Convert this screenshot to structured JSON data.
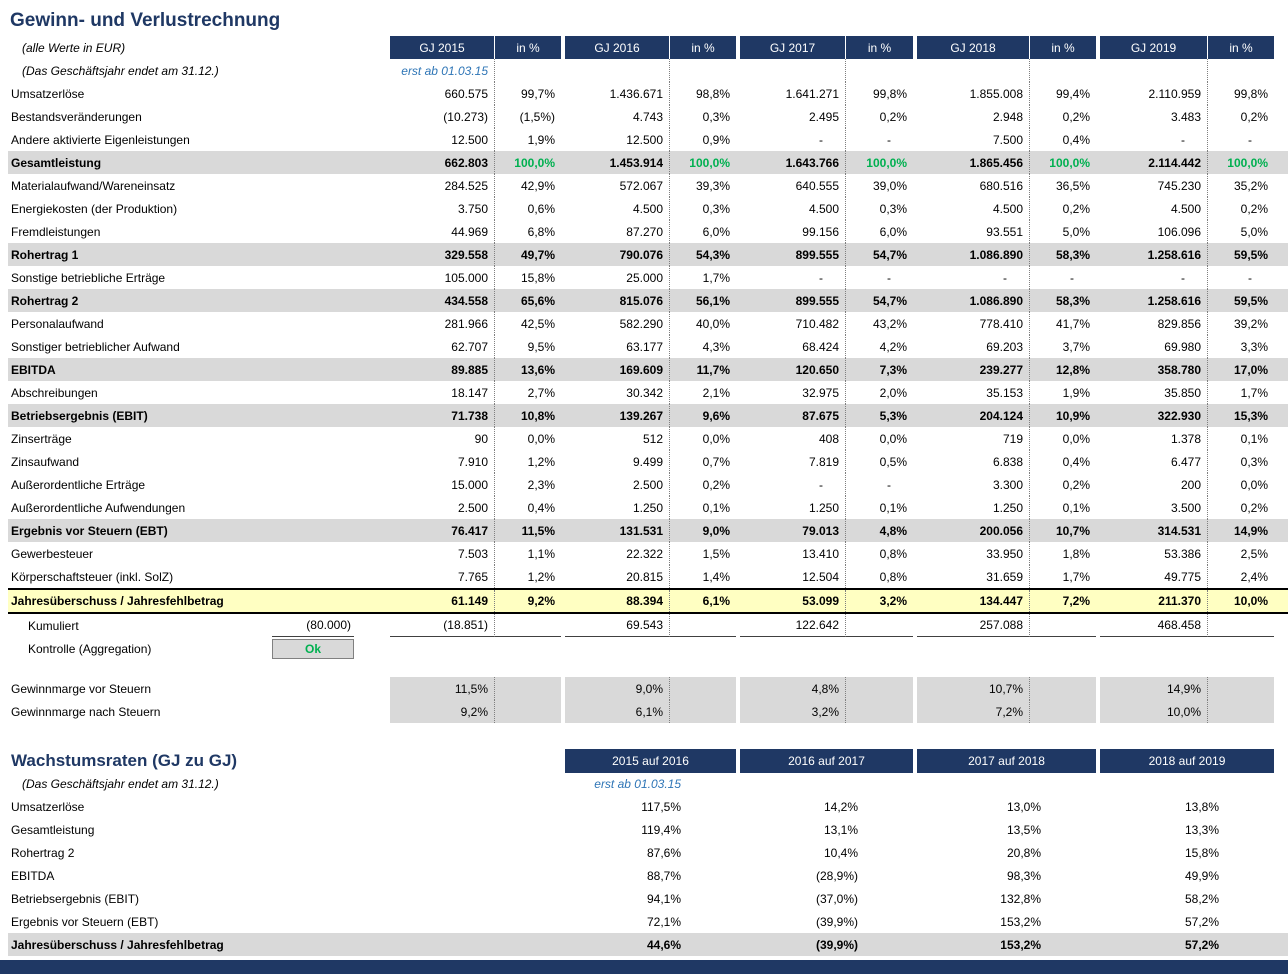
{
  "colors": {
    "header_bg": "#1F3864",
    "title_text": "#1F3864",
    "subtotal_row_bg": "#D9D9D9",
    "highlight_row_bg": "#FFFFC2",
    "green_pct_text": "#00B050",
    "note_text": "#2E75B6",
    "ok_text": "#00B050"
  },
  "pnl": {
    "title": "Gewinn- und Verlustrechnung",
    "subtitle_units": "(alle Werte in EUR)",
    "subtitle_fiscal": "(Das Geschäftsjahr endet am 31.12.)",
    "first_col_note": "erst ab 01.03.15",
    "columns": [
      "GJ 2015",
      "in %",
      "GJ 2016",
      "in %",
      "GJ 2017",
      "in %",
      "GJ 2018",
      "in %",
      "GJ 2019",
      "in %"
    ],
    "rows": [
      {
        "label": "Umsatzerlöse",
        "style": "normal",
        "cells": [
          "660.575",
          "99,7%",
          "1.436.671",
          "98,8%",
          "1.641.271",
          "99,8%",
          "1.855.008",
          "99,4%",
          "2.110.959",
          "99,8%"
        ]
      },
      {
        "label": "Bestandsveränderungen",
        "style": "normal",
        "cells": [
          "(10.273)",
          "(1,5%)",
          "4.743",
          "0,3%",
          "2.495",
          "0,2%",
          "2.948",
          "0,2%",
          "3.483",
          "0,2%"
        ]
      },
      {
        "label": "Andere aktivierte Eigenleistungen",
        "style": "normal",
        "cells": [
          "12.500",
          "1,9%",
          "12.500",
          "0,9%",
          "-",
          "-",
          "7.500",
          "0,4%",
          "-",
          "-"
        ]
      },
      {
        "label": "Gesamtleistung",
        "style": "subtotal",
        "green_pct": true,
        "cells": [
          "662.803",
          "100,0%",
          "1.453.914",
          "100,0%",
          "1.643.766",
          "100,0%",
          "1.865.456",
          "100,0%",
          "2.114.442",
          "100,0%"
        ]
      },
      {
        "label": "Materialaufwand/Wareneinsatz",
        "style": "normal",
        "cells": [
          "284.525",
          "42,9%",
          "572.067",
          "39,3%",
          "640.555",
          "39,0%",
          "680.516",
          "36,5%",
          "745.230",
          "35,2%"
        ]
      },
      {
        "label": "Energiekosten (der Produktion)",
        "style": "normal",
        "cells": [
          "3.750",
          "0,6%",
          "4.500",
          "0,3%",
          "4.500",
          "0,3%",
          "4.500",
          "0,2%",
          "4.500",
          "0,2%"
        ]
      },
      {
        "label": "Fremdleistungen",
        "style": "normal",
        "cells": [
          "44.969",
          "6,8%",
          "87.270",
          "6,0%",
          "99.156",
          "6,0%",
          "93.551",
          "5,0%",
          "106.096",
          "5,0%"
        ]
      },
      {
        "label": "Rohertrag 1",
        "style": "subtotal",
        "cells": [
          "329.558",
          "49,7%",
          "790.076",
          "54,3%",
          "899.555",
          "54,7%",
          "1.086.890",
          "58,3%",
          "1.258.616",
          "59,5%"
        ]
      },
      {
        "label": "Sonstige betriebliche Erträge",
        "style": "normal",
        "cells": [
          "105.000",
          "15,8%",
          "25.000",
          "1,7%",
          "-",
          "-",
          "-",
          "-",
          "-",
          "-"
        ]
      },
      {
        "label": "Rohertrag 2",
        "style": "subtotal",
        "cells": [
          "434.558",
          "65,6%",
          "815.076",
          "56,1%",
          "899.555",
          "54,7%",
          "1.086.890",
          "58,3%",
          "1.258.616",
          "59,5%"
        ]
      },
      {
        "label": "Personalaufwand",
        "style": "normal",
        "cells": [
          "281.966",
          "42,5%",
          "582.290",
          "40,0%",
          "710.482",
          "43,2%",
          "778.410",
          "41,7%",
          "829.856",
          "39,2%"
        ]
      },
      {
        "label": "Sonstiger betrieblicher Aufwand",
        "style": "normal",
        "cells": [
          "62.707",
          "9,5%",
          "63.177",
          "4,3%",
          "68.424",
          "4,2%",
          "69.203",
          "3,7%",
          "69.980",
          "3,3%"
        ]
      },
      {
        "label": "EBITDA",
        "style": "subtotal",
        "cells": [
          "89.885",
          "13,6%",
          "169.609",
          "11,7%",
          "120.650",
          "7,3%",
          "239.277",
          "12,8%",
          "358.780",
          "17,0%"
        ]
      },
      {
        "label": "Abschreibungen",
        "style": "normal",
        "cells": [
          "18.147",
          "2,7%",
          "30.342",
          "2,1%",
          "32.975",
          "2,0%",
          "35.153",
          "1,9%",
          "35.850",
          "1,7%"
        ]
      },
      {
        "label": "Betriebsergebnis (EBIT)",
        "style": "subtotal",
        "cells": [
          "71.738",
          "10,8%",
          "139.267",
          "9,6%",
          "87.675",
          "5,3%",
          "204.124",
          "10,9%",
          "322.930",
          "15,3%"
        ]
      },
      {
        "label": "Zinserträge",
        "style": "normal",
        "cells": [
          "90",
          "0,0%",
          "512",
          "0,0%",
          "408",
          "0,0%",
          "719",
          "0,0%",
          "1.378",
          "0,1%"
        ]
      },
      {
        "label": "Zinsaufwand",
        "style": "normal",
        "cells": [
          "7.910",
          "1,2%",
          "9.499",
          "0,7%",
          "7.819",
          "0,5%",
          "6.838",
          "0,4%",
          "6.477",
          "0,3%"
        ]
      },
      {
        "label": "Außerordentliche Erträge",
        "style": "normal",
        "cells": [
          "15.000",
          "2,3%",
          "2.500",
          "0,2%",
          "-",
          "-",
          "3.300",
          "0,2%",
          "200",
          "0,0%"
        ]
      },
      {
        "label": "Außerordentliche Aufwendungen",
        "style": "normal",
        "cells": [
          "2.500",
          "0,4%",
          "1.250",
          "0,1%",
          "1.250",
          "0,1%",
          "1.250",
          "0,1%",
          "3.500",
          "0,2%"
        ]
      },
      {
        "label": "Ergebnis vor Steuern (EBT)",
        "style": "subtotal",
        "cells": [
          "76.417",
          "11,5%",
          "131.531",
          "9,0%",
          "79.013",
          "4,8%",
          "200.056",
          "10,7%",
          "314.531",
          "14,9%"
        ]
      },
      {
        "label": "Gewerbesteuer",
        "style": "normal",
        "cells": [
          "7.503",
          "1,1%",
          "22.322",
          "1,5%",
          "13.410",
          "0,8%",
          "33.950",
          "1,8%",
          "53.386",
          "2,5%"
        ]
      },
      {
        "label": "Körperschaftsteuer (inkl. SolZ)",
        "style": "normal",
        "cells": [
          "7.765",
          "1,2%",
          "20.815",
          "1,4%",
          "12.504",
          "0,8%",
          "31.659",
          "1,7%",
          "49.775",
          "2,4%"
        ]
      },
      {
        "label": "Jahresüberschuss / Jahresfehlbetrag",
        "style": "highlight",
        "cells": [
          "61.149",
          "9,2%",
          "88.394",
          "6,1%",
          "53.099",
          "3,2%",
          "134.447",
          "7,2%",
          "211.370",
          "10,0%"
        ]
      }
    ],
    "kumuliert": {
      "label": "Kumuliert",
      "opening": "(80.000)",
      "values": [
        "(18.851)",
        "69.543",
        "122.642",
        "257.088",
        "468.458"
      ]
    },
    "kontrolle": {
      "label": "Kontrolle (Aggregation)",
      "status": "Ok"
    },
    "margins": [
      {
        "label": "Gewinnmarge vor Steuern",
        "values": [
          "11,5%",
          "9,0%",
          "4,8%",
          "10,7%",
          "14,9%"
        ]
      },
      {
        "label": "Gewinnmarge nach Steuern",
        "values": [
          "9,2%",
          "6,1%",
          "3,2%",
          "7,2%",
          "10,0%"
        ]
      }
    ]
  },
  "growth": {
    "title": "Wachstumsraten (GJ zu GJ)",
    "subtitle_fiscal": "(Das Geschäftsjahr endet am 31.12.)",
    "first_col_note": "erst ab 01.03.15",
    "columns": [
      "2015 auf 2016",
      "2016 auf 2017",
      "2017 auf 2018",
      "2018 auf 2019"
    ],
    "rows": [
      {
        "label": "Umsatzerlöse",
        "style": "normal",
        "values": [
          "117,5%",
          "14,2%",
          "13,0%",
          "13,8%"
        ]
      },
      {
        "label": "Gesamtleistung",
        "style": "normal",
        "values": [
          "119,4%",
          "13,1%",
          "13,5%",
          "13,3%"
        ]
      },
      {
        "label": "Rohertrag 2",
        "style": "normal",
        "values": [
          "87,6%",
          "10,4%",
          "20,8%",
          "15,8%"
        ]
      },
      {
        "label": "EBITDA",
        "style": "normal",
        "values": [
          "88,7%",
          "(28,9%)",
          "98,3%",
          "49,9%"
        ]
      },
      {
        "label": "Betriebsergebnis (EBIT)",
        "style": "normal",
        "values": [
          "94,1%",
          "(37,0%)",
          "132,8%",
          "58,2%"
        ]
      },
      {
        "label": "Ergebnis vor Steuern (EBT)",
        "style": "normal",
        "values": [
          "72,1%",
          "(39,9%)",
          "153,2%",
          "57,2%"
        ]
      },
      {
        "label": "Jahresüberschuss / Jahresfehlbetrag",
        "style": "subtotal",
        "values": [
          "44,6%",
          "(39,9%)",
          "153,2%",
          "57,2%"
        ]
      }
    ]
  }
}
